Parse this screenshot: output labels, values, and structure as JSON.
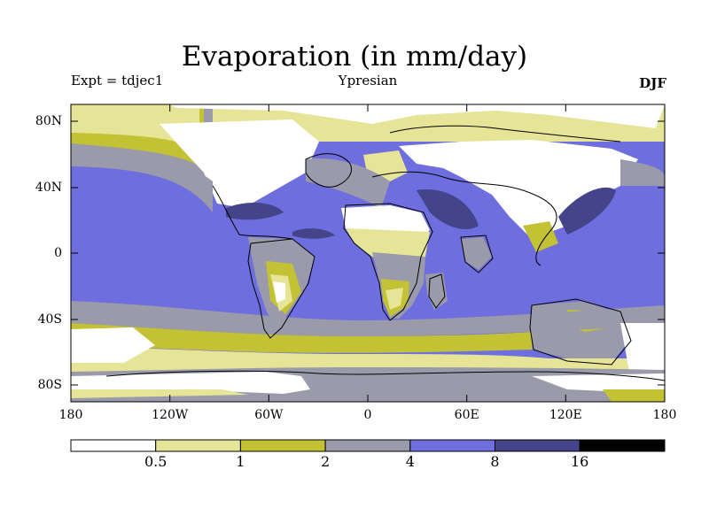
{
  "header": {
    "title": "Evaporation (in mm/day)",
    "experiment": "Expt = tdjec1",
    "subtitle": "Ypresian",
    "season": "DJF"
  },
  "map": {
    "lat_labels": [
      "80N",
      "40N",
      "0",
      "40S",
      "80S"
    ],
    "lat_values": [
      80,
      40,
      0,
      -40,
      -80
    ],
    "lon_labels": [
      "180",
      "120W",
      "60W",
      "0",
      "60E",
      "120E",
      "180"
    ],
    "lon_values": [
      -180,
      -120,
      -60,
      0,
      60,
      120,
      180
    ],
    "lat_range": [
      -90,
      90
    ],
    "lon_range": [
      -180,
      180
    ]
  },
  "colorbar": {
    "colors": [
      "#ffffff",
      "#e6e496",
      "#c3c234",
      "#9a9aaa",
      "#6e6ede",
      "#44448a",
      "#000000"
    ],
    "labels": [
      "0.5",
      "1",
      "2",
      "4",
      "8",
      "16"
    ],
    "units": "mm/day"
  }
}
